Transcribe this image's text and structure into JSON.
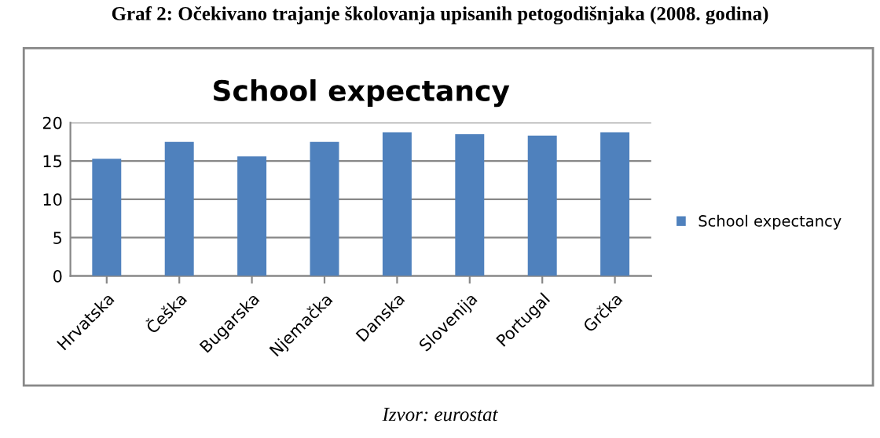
{
  "chart_data": {
    "type": "bar",
    "title": "School expectancy",
    "subtitle": "Graf 2: Očekivano trajanje školovanja upisanih petogodišnjaka (2008. godina)",
    "annotations": [
      "Izvor: eurostat"
    ],
    "categories": [
      "Hrvatska",
      "Češka",
      "Bugarska",
      "Njemačka",
      "Danska",
      "Slovenija",
      "Portugal",
      "Grčka"
    ],
    "series": [
      {
        "name": "School expectancy",
        "color": "#4f81bd",
        "values": [
          15.3,
          17.5,
          15.6,
          17.5,
          18.75,
          18.5,
          18.3,
          18.75
        ]
      }
    ],
    "ylim": [
      0,
      20
    ],
    "yticks": [
      0,
      5,
      10,
      15,
      20
    ],
    "grid": "y",
    "legend": "right"
  }
}
